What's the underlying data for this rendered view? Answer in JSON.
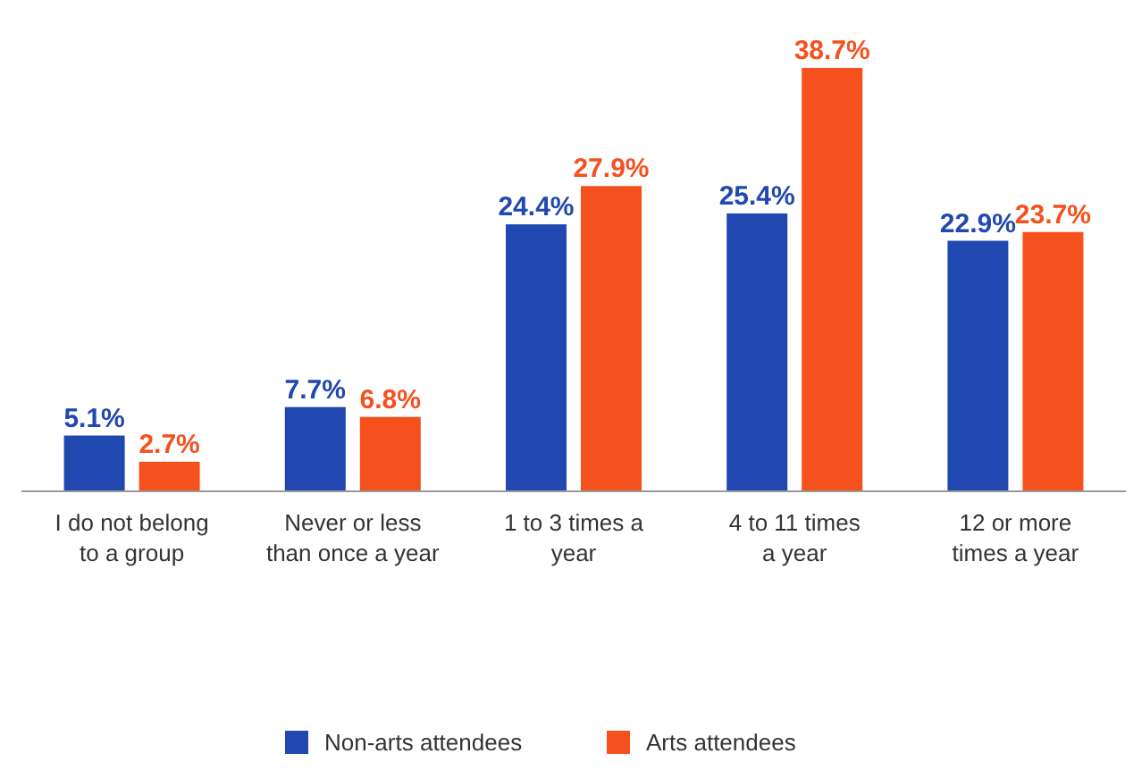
{
  "chart_data": {
    "type": "bar",
    "categories": [
      "I do not belong\nto a group",
      "Never or less\nthan once a year",
      "1 to 3 times a\nyear",
      "4 to 11 times\na year",
      "12 or more\ntimes a year"
    ],
    "series": [
      {
        "name": "Non-arts attendees",
        "color": "#2148b0",
        "values": [
          5.1,
          7.7,
          24.4,
          25.4,
          22.9
        ],
        "value_labels": [
          "5.1%",
          "7.7%",
          "24.4%",
          "25.4%",
          "22.9%"
        ]
      },
      {
        "name": "Arts attendees",
        "color": "#f4511e",
        "values": [
          2.7,
          6.8,
          27.9,
          38.7,
          23.7
        ],
        "value_labels": [
          "2.7%",
          "6.8%",
          "27.9%",
          "38.7%",
          "23.7%"
        ]
      }
    ],
    "legend": "bottom"
  }
}
